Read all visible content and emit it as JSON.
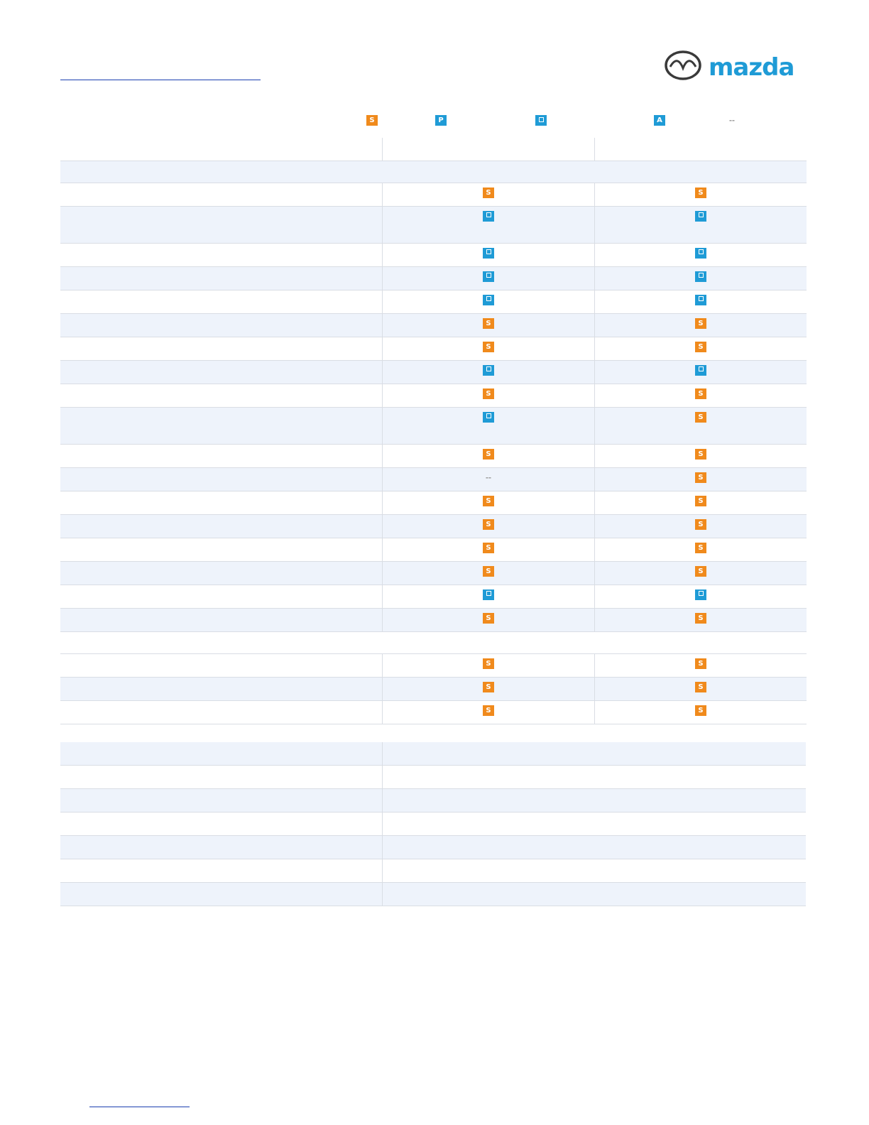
{
  "brand": {
    "logo_text": "mazda",
    "logo_icon": "mazda-wing-emblem",
    "colors": {
      "logo_blue": "#1f9bd6",
      "standard_orange": "#f08a1c",
      "option_blue": "#1f9bd6"
    }
  },
  "legend": [
    {
      "code": "s",
      "glyph": "S",
      "icon": "standard-badge-icon"
    },
    {
      "code": "p",
      "glyph": "P",
      "icon": "package-badge-icon"
    },
    {
      "code": "o",
      "glyph": "",
      "icon": "option-badge-icon"
    },
    {
      "code": "a",
      "glyph": "A",
      "icon": "accessory-badge-icon"
    },
    {
      "code": "d",
      "glyph": "--",
      "icon": "not-available-icon"
    }
  ],
  "feature_rows": [
    {
      "kind": "header"
    },
    {
      "kind": "section"
    },
    {
      "c2": "s",
      "c3": "s"
    },
    {
      "c2": "o",
      "c3": "o",
      "tall": true
    },
    {
      "c2": "o",
      "c3": "o"
    },
    {
      "c2": "o",
      "c3": "o"
    },
    {
      "c2": "o",
      "c3": "o"
    },
    {
      "c2": "s",
      "c3": "s"
    },
    {
      "c2": "s",
      "c3": "s"
    },
    {
      "c2": "o",
      "c3": "o"
    },
    {
      "c2": "s",
      "c3": "s"
    },
    {
      "c2": "o",
      "c3": "s",
      "tall": true
    },
    {
      "c2": "s",
      "c3": "s"
    },
    {
      "c2": "d",
      "c3": "s"
    },
    {
      "c2": "s",
      "c3": "s"
    },
    {
      "c2": "s",
      "c3": "s"
    },
    {
      "c2": "s",
      "c3": "s"
    },
    {
      "c2": "s",
      "c3": "s"
    },
    {
      "c2": "o",
      "c3": "o"
    },
    {
      "c2": "s",
      "c3": "s"
    },
    {
      "kind": "blank"
    },
    {
      "c2": "s",
      "c3": "s"
    },
    {
      "c2": "s",
      "c3": "s"
    },
    {
      "c2": "s",
      "c3": "s"
    }
  ],
  "spec_rows": 7
}
